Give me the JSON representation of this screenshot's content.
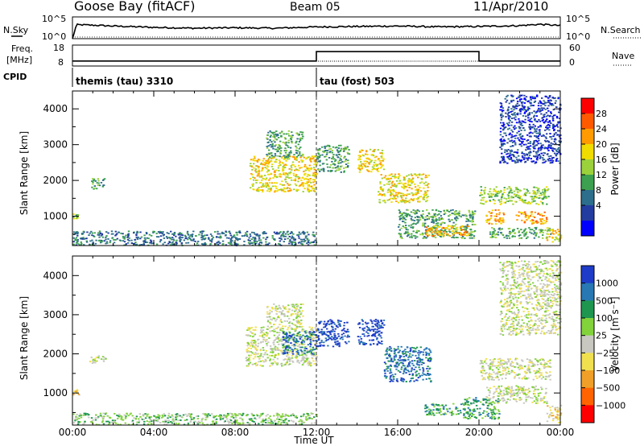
{
  "header": {
    "station": "Goose Bay (fitACF)",
    "beam": "Beam 05",
    "date": "11/Apr/2010"
  },
  "left_labels": {
    "nsky": "N.Sky",
    "freq_top": "Freq.",
    "freq_unit": "[MHz]",
    "cpid": "CPID",
    "nsky_ticks": [
      "10^5",
      "10^0"
    ],
    "freq_ticks": [
      "18",
      "8"
    ]
  },
  "right_labels": {
    "nsearch": "N.Search",
    "nave": "Nave",
    "nsearch_ticks": [
      "10^5",
      "10^0"
    ],
    "nave_ticks": [
      "60",
      "0"
    ]
  },
  "cpid_segments": [
    {
      "label": "themis (tau) 3310",
      "start_hour": 0,
      "end_hour": 12
    },
    {
      "label": "tau (fost) 503",
      "start_hour": 12,
      "end_hour": 24
    }
  ],
  "chart_data": [
    {
      "type": "line",
      "name": "nsky_nsearch_panel",
      "x_hours": [
        0,
        0.2,
        1,
        2,
        4,
        6,
        8,
        10,
        12,
        14,
        16,
        18,
        20,
        22,
        23,
        24
      ],
      "nsky_log": [
        0,
        3.2,
        3.1,
        2.9,
        2.6,
        2.4,
        2.5,
        2.4,
        2.7,
        2.8,
        2.9,
        2.7,
        2.8,
        3.0,
        3.3,
        3.0
      ],
      "ylim_log": [
        0,
        5
      ]
    },
    {
      "type": "line",
      "name": "freq_nave_panel",
      "freq_mhz": [
        {
          "hour": 0,
          "value": 10.4
        },
        {
          "hour": 12,
          "value": 10.4
        },
        {
          "hour": 12,
          "value": 14.9
        },
        {
          "hour": 20,
          "value": 14.9
        },
        {
          "hour": 20,
          "value": 10.4
        },
        {
          "hour": 24,
          "value": 10.4
        }
      ],
      "ylim_freq": [
        8,
        18
      ],
      "ylim_nave": [
        0,
        60
      ]
    },
    {
      "type": "heatmap",
      "name": "power_panel",
      "ylabel": "Slant Range [km]",
      "yticks": [
        1000,
        2000,
        3000,
        4000
      ],
      "ylim": [
        180,
        4500
      ],
      "xlim_hours": [
        0,
        24
      ],
      "colorbar_label": "Power [dB]",
      "colorbar_ticks": [
        "28",
        "24",
        "20",
        "16",
        "12",
        "8",
        "4"
      ],
      "colorbar_colors": [
        "#ff0000",
        "#ff5a00",
        "#ff9b00",
        "#f0dc00",
        "#9bd23c",
        "#3ca050",
        "#2d6e8c",
        "#233ca0",
        "#0000ff"
      ],
      "regions": [
        {
          "h0": 0.0,
          "h1": 0.3,
          "r0": 950,
          "r1": 1100,
          "level": 4
        },
        {
          "h0": 0.9,
          "h1": 1.6,
          "r0": 1780,
          "r1": 2080,
          "level": 3
        },
        {
          "h0": 0.0,
          "h1": 12.0,
          "r0": 200,
          "r1": 600,
          "level": 2
        },
        {
          "h0": 8.7,
          "h1": 12.0,
          "r0": 1700,
          "r1": 2700,
          "level": 5
        },
        {
          "h0": 9.5,
          "h1": 11.3,
          "r0": 2650,
          "r1": 3400,
          "level": 3
        },
        {
          "h0": 12.0,
          "h1": 13.6,
          "r0": 2250,
          "r1": 3000,
          "level": 3
        },
        {
          "h0": 14.0,
          "h1": 15.3,
          "r0": 2250,
          "r1": 2900,
          "level": 5
        },
        {
          "h0": 15.0,
          "h1": 17.5,
          "r0": 1400,
          "r1": 2200,
          "level": 5
        },
        {
          "h0": 16.0,
          "h1": 19.8,
          "r0": 400,
          "r1": 1200,
          "level": 3
        },
        {
          "h0": 17.3,
          "h1": 19.5,
          "r0": 450,
          "r1": 750,
          "level": 6
        },
        {
          "h0": 20.0,
          "h1": 23.4,
          "r0": 1350,
          "r1": 1850,
          "level": 4
        },
        {
          "h0": 20.3,
          "h1": 21.2,
          "r0": 800,
          "r1": 1200,
          "level": 6
        },
        {
          "h0": 21.8,
          "h1": 23.3,
          "r0": 800,
          "r1": 1150,
          "level": 6
        },
        {
          "h0": 20.5,
          "h1": 23.5,
          "r0": 400,
          "r1": 700,
          "level": 3
        },
        {
          "h0": 23.3,
          "h1": 24.0,
          "r0": 300,
          "r1": 700,
          "level": 5
        },
        {
          "h0": 21.0,
          "h1": 24.0,
          "r0": 2500,
          "r1": 4400,
          "level": 1
        }
      ]
    },
    {
      "type": "heatmap",
      "name": "velocity_panel",
      "ylabel": "Slant Range [km]",
      "yticks": [
        1000,
        2000,
        3000,
        4000
      ],
      "ylim": [
        180,
        4500
      ],
      "xlim_hours": [
        0,
        24
      ],
      "xticks": [
        "00:00",
        "04:00",
        "08:00",
        "12:00",
        "16:00",
        "20:00",
        "00:00"
      ],
      "xlabel": "Time UT",
      "colorbar_label": "Velocity [m s⁻¹]",
      "colorbar_ticks": [
        "1000",
        "500",
        "100",
        "25",
        "−25",
        "−100",
        "−500",
        "−1000"
      ],
      "colorbar_colors": [
        "#1e3cc8",
        "#2878b4",
        "#1e9650",
        "#82d23c",
        "#c8c8c0",
        "#f0e050",
        "#f0a028",
        "#ff6400",
        "#ff0000"
      ],
      "regions": [
        {
          "h0": 0.0,
          "h1": 0.3,
          "r0": 950,
          "r1": 1100,
          "level": 3
        },
        {
          "h0": 0.8,
          "h1": 1.6,
          "r0": 1780,
          "r1": 2000,
          "level": 4
        },
        {
          "h0": 0.0,
          "h1": 12.0,
          "r0": 200,
          "r1": 500,
          "level": 5
        },
        {
          "h0": 8.5,
          "h1": 12.0,
          "r0": 1700,
          "r1": 2700,
          "level": 4
        },
        {
          "h0": 10.3,
          "h1": 12.0,
          "r0": 2000,
          "r1": 2600,
          "level": 7
        },
        {
          "h0": 9.5,
          "h1": 11.3,
          "r0": 2700,
          "r1": 3300,
          "level": 4
        },
        {
          "h0": 12.0,
          "h1": 13.6,
          "r0": 2200,
          "r1": 2900,
          "level": 8
        },
        {
          "h0": 14.0,
          "h1": 15.3,
          "r0": 2250,
          "r1": 2900,
          "level": 8
        },
        {
          "h0": 15.3,
          "h1": 17.6,
          "r0": 1300,
          "r1": 2200,
          "level": 7
        },
        {
          "h0": 17.3,
          "h1": 19.4,
          "r0": 450,
          "r1": 750,
          "level": 6
        },
        {
          "h0": 19.2,
          "h1": 21.0,
          "r0": 350,
          "r1": 900,
          "level": 6
        },
        {
          "h0": 20.0,
          "h1": 23.5,
          "r0": 1350,
          "r1": 1900,
          "level": 4
        },
        {
          "h0": 20.3,
          "h1": 23.3,
          "r0": 750,
          "r1": 1200,
          "level": 4
        },
        {
          "h0": 23.3,
          "h1": 24.0,
          "r0": 250,
          "r1": 700,
          "level": 3
        },
        {
          "h0": 21.0,
          "h1": 24.0,
          "r0": 2500,
          "r1": 4400,
          "level": 4
        }
      ]
    }
  ]
}
